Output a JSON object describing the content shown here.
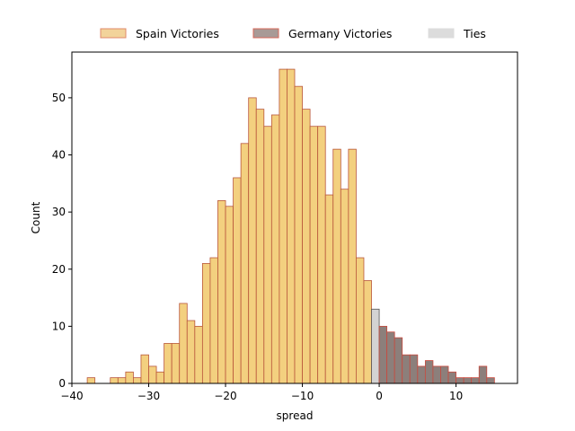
{
  "chart_data": {
    "type": "bar",
    "subtype": "histogram",
    "xlabel": "spread",
    "ylabel": "Count",
    "xlim": [
      -40,
      18
    ],
    "ylim": [
      0,
      58
    ],
    "xticks": [
      -40,
      -30,
      -20,
      -10,
      0,
      10
    ],
    "yticks": [
      0,
      10,
      20,
      30,
      40,
      50
    ],
    "grid": false,
    "bin_width": 1,
    "legend": {
      "placement": "top-center, above plot",
      "entries": [
        {
          "label": "Spain Victories",
          "fill": "#f2d39a",
          "edge": "#e08a6a"
        },
        {
          "label": "Germany Victories",
          "fill": "#a89a96",
          "edge": "#d7685a"
        },
        {
          "label": "Ties",
          "fill": "#dcdcdc",
          "edge": "#dcdcdc"
        }
      ]
    },
    "series": [
      {
        "name": "Spain Victories",
        "fill": "#f3d07f",
        "edge": "#b9573c",
        "bins": [
          {
            "x": -38,
            "count": 1
          },
          {
            "x": -35,
            "count": 1
          },
          {
            "x": -34,
            "count": 1
          },
          {
            "x": -33,
            "count": 2
          },
          {
            "x": -32,
            "count": 1
          },
          {
            "x": -31,
            "count": 5
          },
          {
            "x": -30,
            "count": 3
          },
          {
            "x": -29,
            "count": 2
          },
          {
            "x": -28,
            "count": 7
          },
          {
            "x": -27,
            "count": 7
          },
          {
            "x": -26,
            "count": 14
          },
          {
            "x": -25,
            "count": 11
          },
          {
            "x": -24,
            "count": 10
          },
          {
            "x": -23,
            "count": 21
          },
          {
            "x": -22,
            "count": 22
          },
          {
            "x": -21,
            "count": 32
          },
          {
            "x": -20,
            "count": 31
          },
          {
            "x": -19,
            "count": 36
          },
          {
            "x": -18,
            "count": 42
          },
          {
            "x": -17,
            "count": 50
          },
          {
            "x": -16,
            "count": 48
          },
          {
            "x": -15,
            "count": 45
          },
          {
            "x": -14,
            "count": 47
          },
          {
            "x": -13,
            "count": 55
          },
          {
            "x": -12,
            "count": 55
          },
          {
            "x": -11,
            "count": 52
          },
          {
            "x": -10,
            "count": 48
          },
          {
            "x": -9,
            "count": 45
          },
          {
            "x": -8,
            "count": 45
          },
          {
            "x": -7,
            "count": 33
          },
          {
            "x": -6,
            "count": 41
          },
          {
            "x": -5,
            "count": 34
          },
          {
            "x": -4,
            "count": 41
          },
          {
            "x": -3,
            "count": 22
          },
          {
            "x": -2,
            "count": 18
          }
        ]
      },
      {
        "name": "Ties",
        "fill": "#d3d3d3",
        "edge": "#555555",
        "bins": [
          {
            "x": -1,
            "count": 13
          }
        ]
      },
      {
        "name": "Germany Victories",
        "fill": "#8c7f7b",
        "edge": "#c94a3e",
        "bins": [
          {
            "x": 0,
            "count": 10
          },
          {
            "x": 1,
            "count": 9
          },
          {
            "x": 2,
            "count": 8
          },
          {
            "x": 3,
            "count": 5
          },
          {
            "x": 4,
            "count": 5
          },
          {
            "x": 5,
            "count": 3
          },
          {
            "x": 6,
            "count": 4
          },
          {
            "x": 7,
            "count": 3
          },
          {
            "x": 8,
            "count": 3
          },
          {
            "x": 9,
            "count": 2
          },
          {
            "x": 10,
            "count": 1
          },
          {
            "x": 11,
            "count": 1
          },
          {
            "x": 12,
            "count": 1
          },
          {
            "x": 13,
            "count": 3
          },
          {
            "x": 14,
            "count": 1
          }
        ]
      }
    ]
  }
}
